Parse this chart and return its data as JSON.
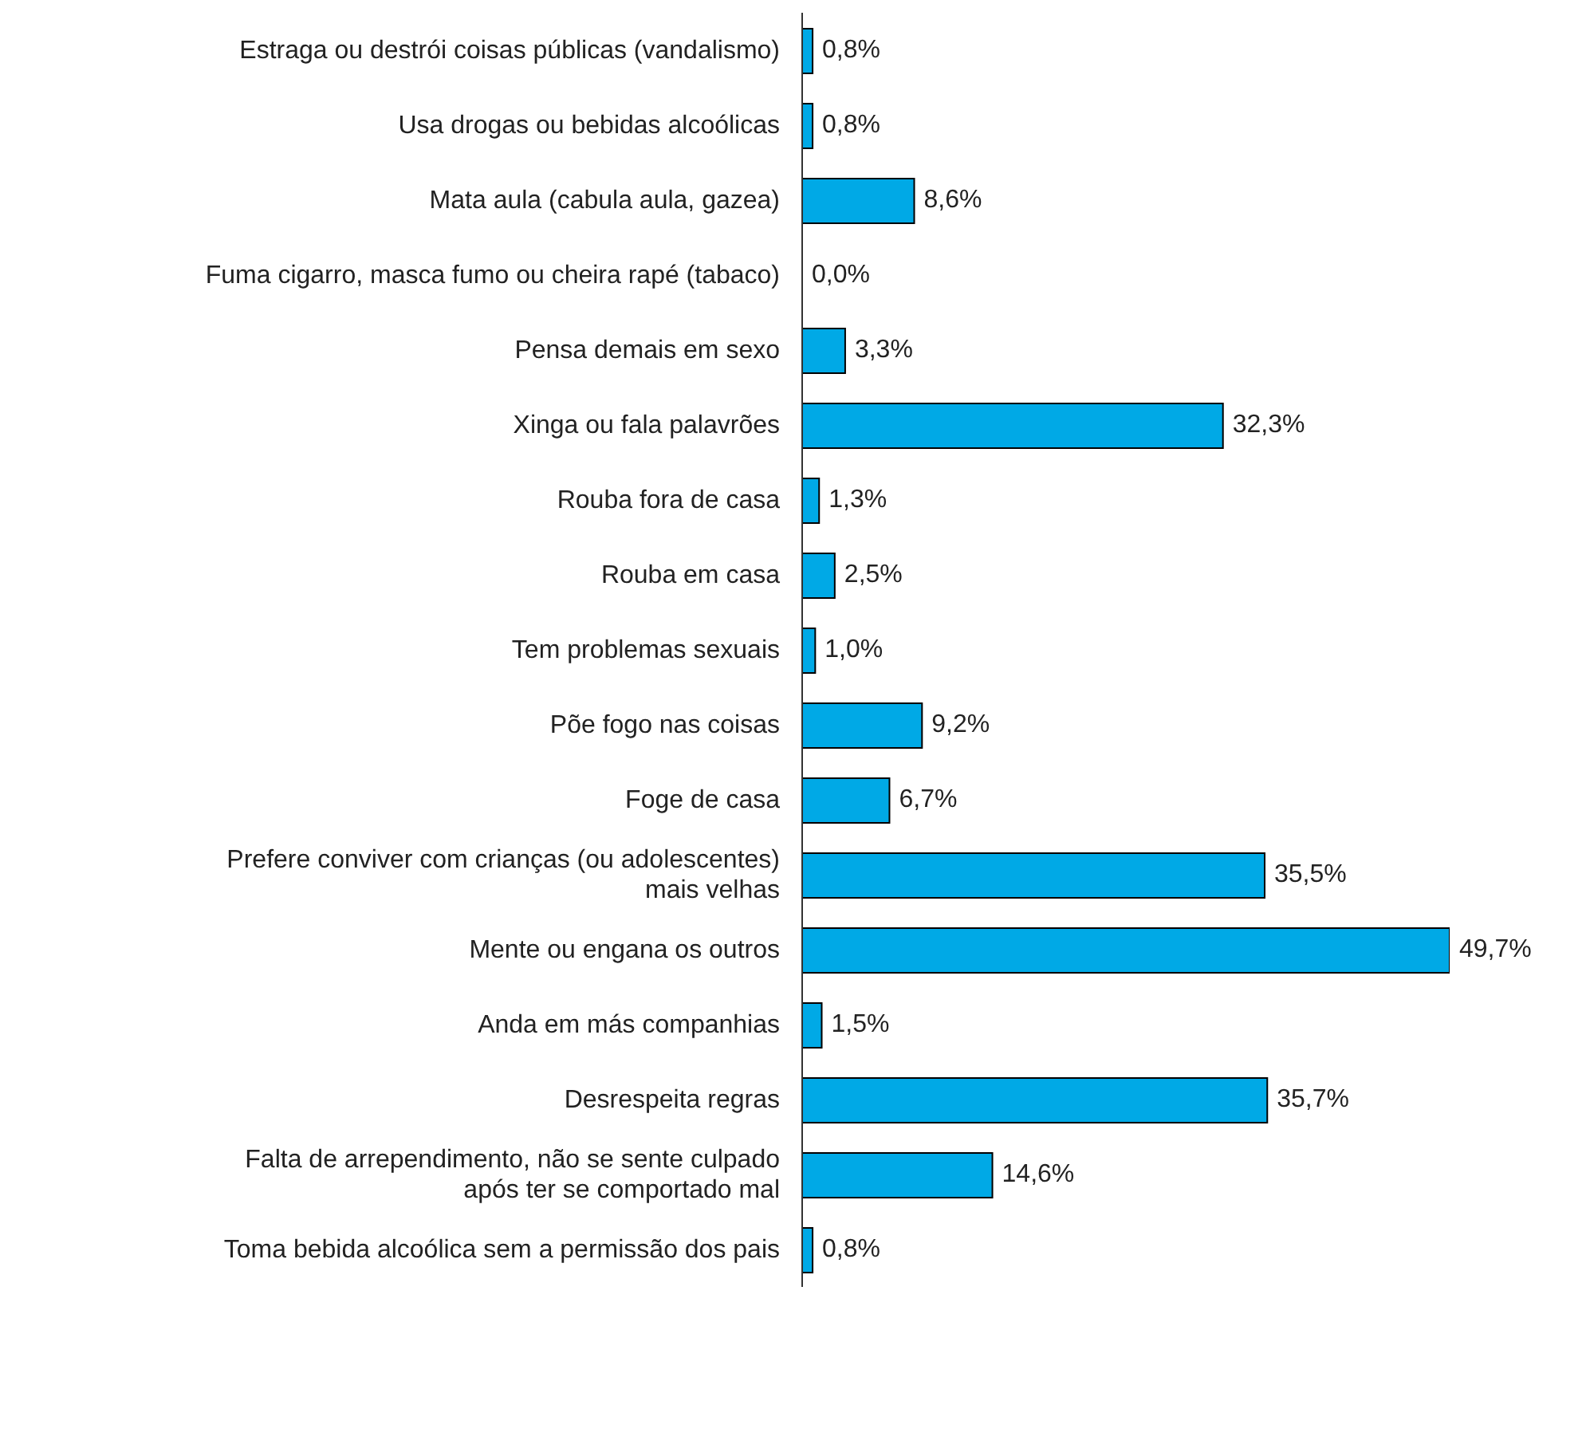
{
  "chart_data": {
    "type": "bar",
    "orientation": "horizontal",
    "categories": [
      "Estraga ou destrói coisas públicas (vandalismo)",
      "Usa drogas ou bebidas alcoólicas",
      "Mata aula (cabula aula, gazea)",
      "Fuma cigarro, masca fumo ou cheira rapé (tabaco)",
      "Pensa demais em sexo",
      "Xinga ou fala palavrões",
      "Rouba fora de casa",
      "Rouba em casa",
      "Tem problemas sexuais",
      "Põe fogo nas coisas",
      "Foge de casa",
      "Prefere conviver com crianças (ou adolescentes) mais velhas",
      "Mente ou engana os outros",
      "Anda em más companhias",
      "Desrespeita regras",
      "Falta de arrependimento, não se sente culpado após ter se comportado mal",
      "Toma bebida alcoólica sem a permissão dos pais"
    ],
    "values": [
      0.8,
      0.8,
      8.6,
      0.0,
      3.3,
      32.3,
      1.3,
      2.5,
      1.0,
      9.2,
      6.7,
      35.5,
      49.7,
      1.5,
      35.7,
      14.6,
      0.8
    ],
    "value_labels": [
      "0,8%",
      "0,8%",
      "8,6%",
      "0,0%",
      "3,3%",
      "32,3%",
      "1,3%",
      "2,5%",
      "1,0%",
      "9,2%",
      "6,7%",
      "35,5%",
      "49,7%",
      "1,5%",
      "35,7%",
      "14,6%",
      "0,8%"
    ],
    "color": "#00a9e6",
    "tick_labels": "y",
    "legend": false
  }
}
